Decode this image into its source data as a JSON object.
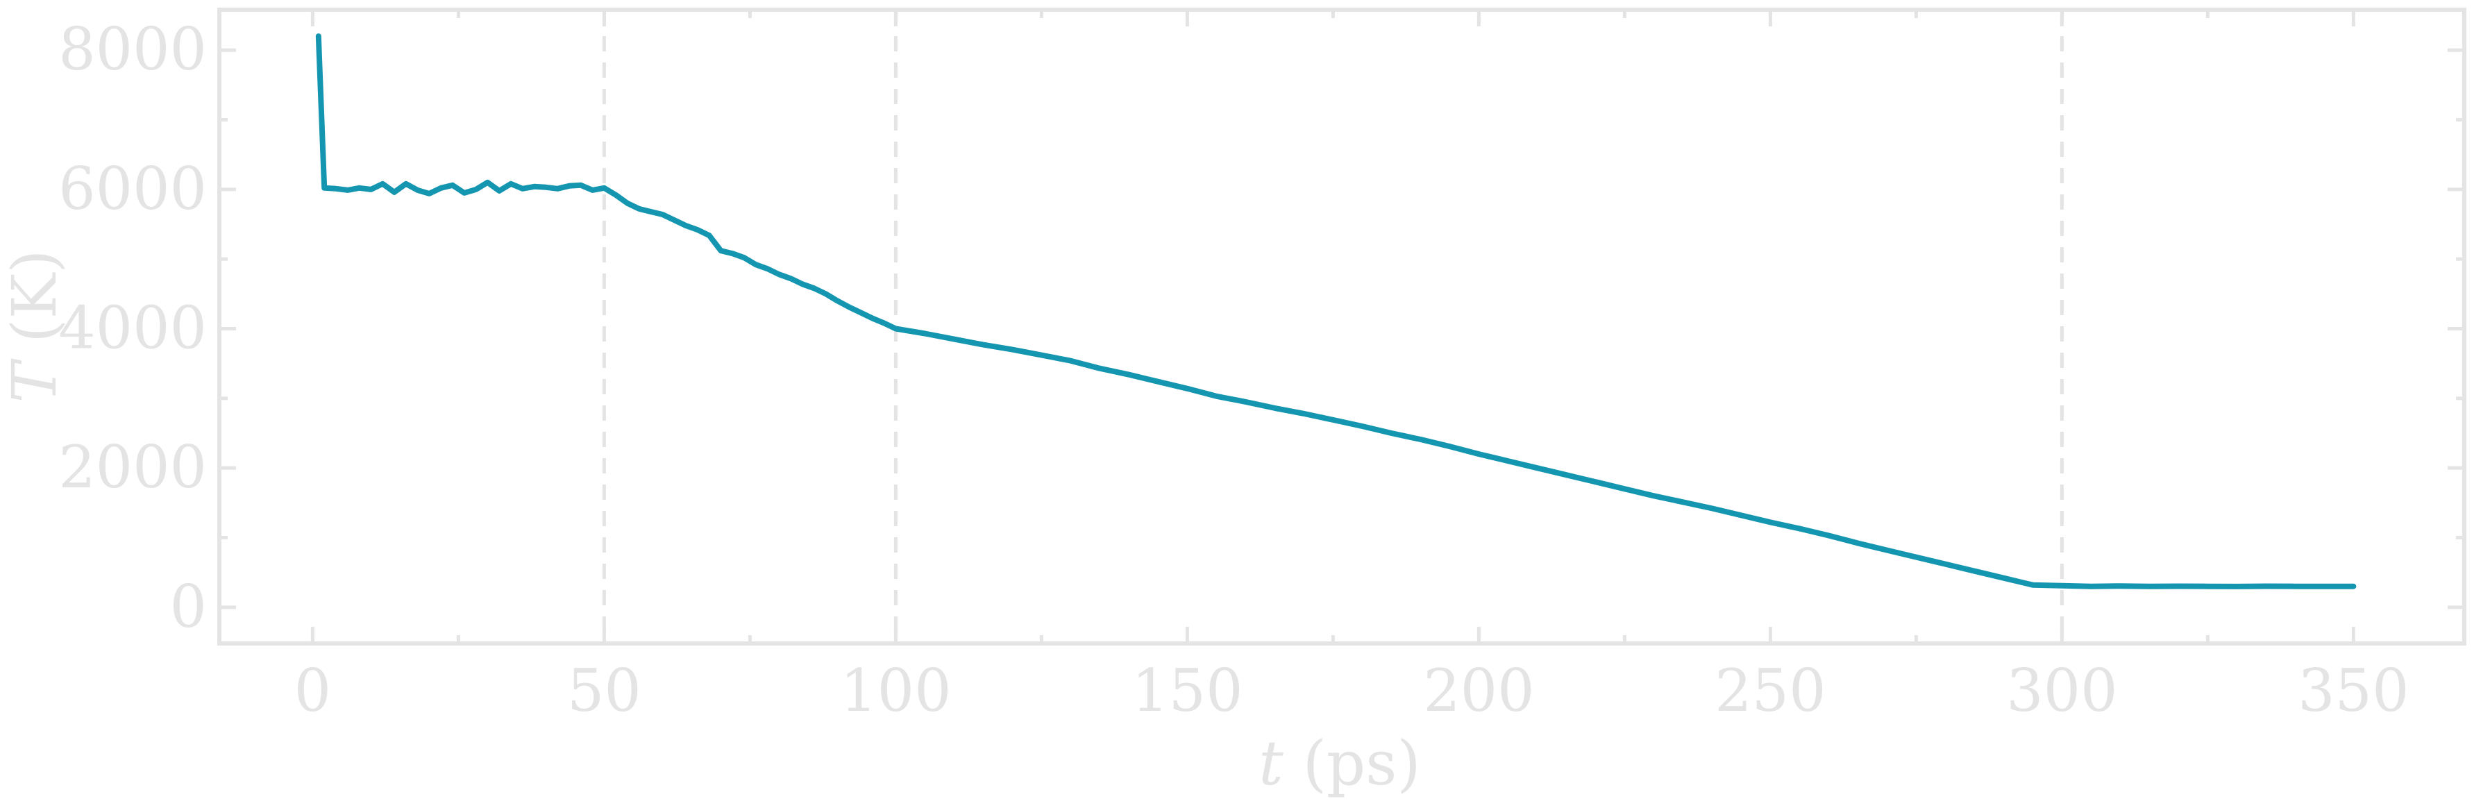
{
  "chart_data": {
    "type": "line",
    "title": "",
    "xlabel": {
      "var": "t",
      "unit": "(ps)"
    },
    "ylabel": {
      "var": "T",
      "unit": "(K)"
    },
    "xlim": [
      -16,
      369
    ],
    "ylim": [
      -520,
      8580
    ],
    "xticks": [
      0,
      50,
      100,
      150,
      200,
      250,
      300,
      350
    ],
    "xtick_labels": [
      "0",
      "50",
      "100",
      "150",
      "200",
      "250",
      "300",
      "350"
    ],
    "xminor": [
      25,
      75,
      125,
      175,
      225,
      275,
      325
    ],
    "yticks": [
      0,
      2000,
      4000,
      6000,
      8000
    ],
    "ytick_labels": [
      "0",
      "2000",
      "4000",
      "6000",
      "8000"
    ],
    "yminor": [
      1000,
      3000,
      5000,
      7000
    ],
    "vlines": [
      50,
      100,
      300
    ],
    "grid": false,
    "legend": null,
    "colors": {
      "line": "#1596b0",
      "axis": "#e4e4e4"
    },
    "series": [
      {
        "x": [
          1,
          2,
          4,
          6,
          8,
          10,
          12,
          14,
          16,
          18,
          20,
          22,
          24,
          26,
          28,
          30,
          32,
          34,
          36,
          38,
          40,
          42,
          44,
          46,
          48,
          50,
          52,
          54,
          56,
          58,
          60,
          62,
          64,
          66,
          68,
          70,
          72,
          74,
          76,
          78,
          80,
          82,
          84,
          86,
          88,
          90,
          92,
          94,
          96,
          98,
          100,
          105,
          110,
          115,
          120,
          125,
          130,
          135,
          140,
          145,
          150,
          155,
          160,
          165,
          170,
          175,
          180,
          185,
          190,
          195,
          200,
          205,
          210,
          215,
          220,
          225,
          230,
          235,
          240,
          245,
          250,
          255,
          260,
          265,
          270,
          275,
          280,
          285,
          290,
          295,
          300,
          305,
          310,
          315,
          320,
          325,
          330,
          335,
          340,
          345,
          350
        ],
        "y": [
          8200,
          6020,
          6010,
          5990,
          6020,
          6000,
          6080,
          5960,
          6080,
          5990,
          5940,
          6020,
          6060,
          5950,
          6000,
          6100,
          5980,
          6080,
          6010,
          6040,
          6030,
          6010,
          6050,
          6060,
          5990,
          6020,
          5920,
          5800,
          5720,
          5680,
          5640,
          5560,
          5480,
          5420,
          5340,
          5120,
          5080,
          5020,
          4920,
          4860,
          4780,
          4720,
          4640,
          4580,
          4500,
          4400,
          4310,
          4230,
          4150,
          4080,
          4000,
          3930,
          3850,
          3770,
          3700,
          3620,
          3540,
          3430,
          3340,
          3240,
          3140,
          3030,
          2950,
          2860,
          2780,
          2690,
          2600,
          2500,
          2410,
          2310,
          2200,
          2100,
          2000,
          1900,
          1800,
          1700,
          1600,
          1510,
          1420,
          1320,
          1220,
          1130,
          1030,
          920,
          820,
          720,
          620,
          520,
          420,
          320,
          310,
          300,
          305,
          300,
          302,
          300,
          298,
          302,
          300,
          300,
          300
        ]
      }
    ]
  }
}
